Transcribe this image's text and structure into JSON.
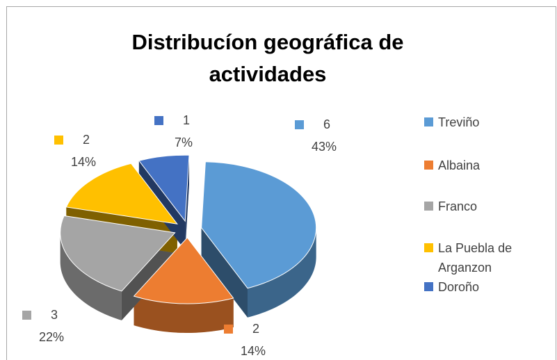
{
  "chart_data": {
    "type": "pie3d",
    "title": "Distribucíon geográfica de actividades",
    "categories": [
      "Treviño",
      "Albaina",
      "Franco",
      "La Puebla de Arganzon",
      "Doroño"
    ],
    "values": [
      6,
      2,
      3,
      2,
      1
    ],
    "percents": [
      43,
      14,
      22,
      14,
      7
    ],
    "percent_labels": [
      "43%",
      "14%",
      "22%",
      "14%",
      "7%"
    ],
    "colors": [
      "#5b9bd5",
      "#ed7d31",
      "#a5a5a5",
      "#ffc000",
      "#4472c4"
    ],
    "legend": "right"
  }
}
